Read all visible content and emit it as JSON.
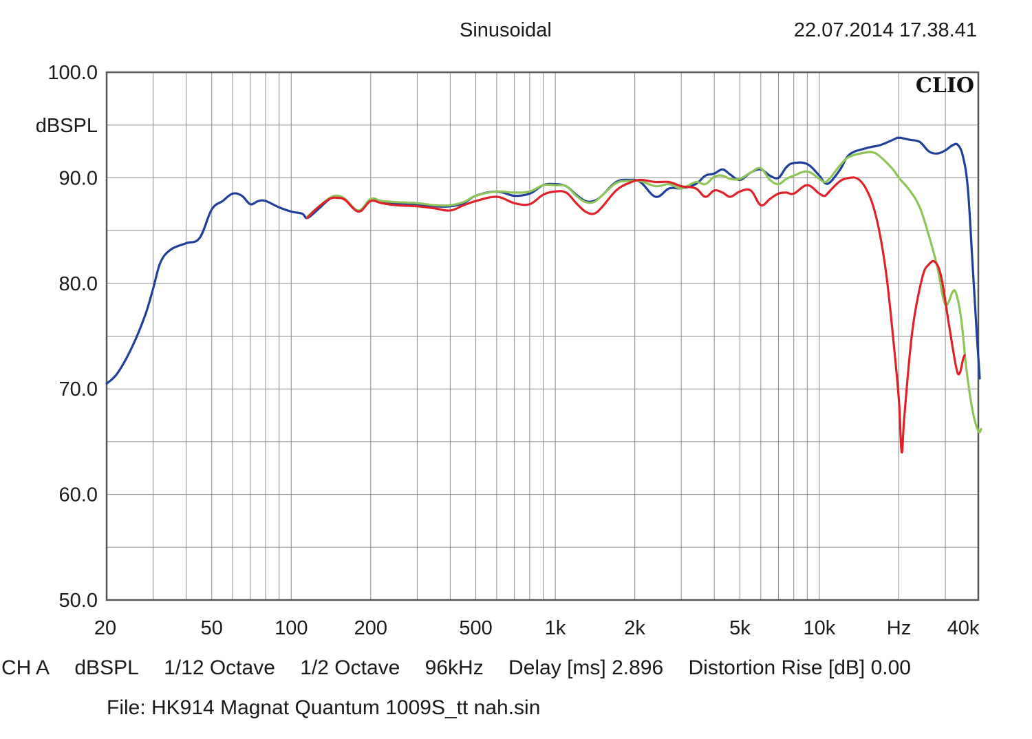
{
  "header": {
    "title": "Sinusoidal",
    "timestamp": "22.07.2014 17.38.41",
    "watermark": "CLIO"
  },
  "footer": {
    "channel": "CH A",
    "unit": "dBSPL",
    "smoothing": "1/12 Octave",
    "octave": "1/2 Octave",
    "sample_rate": "96kHz",
    "delay": "Delay [ms] 2.896",
    "distortion": "Distortion Rise [dB] 0.00",
    "file": "File: HK914 Magnat Quantum 1009S_tt nah.sin"
  },
  "colors": {
    "blue": "#1f3f9a",
    "green": "#8ec45a",
    "red": "#e0212a",
    "grid": "#8a8a8a",
    "frame": "#555555"
  },
  "chart_data": {
    "type": "line",
    "title": "Sinusoidal",
    "xlabel": "Hz",
    "ylabel": "dBSPL",
    "xscale": "log",
    "xlim": [
      20,
      40000
    ],
    "ylim": [
      50,
      100
    ],
    "grid": true,
    "y_ticks": [
      {
        "value": 100,
        "label": "100.0"
      },
      {
        "value": 90,
        "label": "90.0"
      },
      {
        "value": 80,
        "label": "80.0"
      },
      {
        "value": 70,
        "label": "70.0"
      },
      {
        "value": 60,
        "label": "60.0"
      },
      {
        "value": 50,
        "label": "50.0"
      }
    ],
    "x_ticks": [
      {
        "value": 20,
        "label": "20"
      },
      {
        "value": 50,
        "label": "50"
      },
      {
        "value": 100,
        "label": "100"
      },
      {
        "value": 200,
        "label": "200"
      },
      {
        "value": 500,
        "label": "500"
      },
      {
        "value": 1000,
        "label": "1k"
      },
      {
        "value": 2000,
        "label": "2k"
      },
      {
        "value": 5000,
        "label": "5k"
      },
      {
        "value": 10000,
        "label": "10k"
      },
      {
        "value": 20000,
        "label": "Hz"
      },
      {
        "value": 40000,
        "label": "40k"
      }
    ],
    "series": [
      {
        "color": "#1f3f9a",
        "points": [
          [
            20,
            70.5
          ],
          [
            22,
            71.5
          ],
          [
            25,
            74.0
          ],
          [
            28,
            77.0
          ],
          [
            30,
            79.5
          ],
          [
            32,
            82.0
          ],
          [
            35,
            83.2
          ],
          [
            40,
            83.8
          ],
          [
            45,
            84.3
          ],
          [
            50,
            87.0
          ],
          [
            55,
            87.8
          ],
          [
            60,
            88.5
          ],
          [
            65,
            88.3
          ],
          [
            70,
            87.5
          ],
          [
            75,
            87.8
          ],
          [
            80,
            87.8
          ],
          [
            90,
            87.2
          ],
          [
            100,
            86.8
          ],
          [
            110,
            86.6
          ],
          [
            115,
            86.2
          ],
          [
            125,
            86.9
          ],
          [
            140,
            88.0
          ],
          [
            150,
            88.2
          ],
          [
            160,
            88.0
          ],
          [
            180,
            86.8
          ],
          [
            200,
            87.9
          ],
          [
            220,
            87.7
          ],
          [
            250,
            87.6
          ],
          [
            300,
            87.5
          ],
          [
            350,
            87.3
          ],
          [
            400,
            87.3
          ],
          [
            450,
            87.6
          ],
          [
            500,
            88.3
          ],
          [
            600,
            88.7
          ],
          [
            700,
            88.3
          ],
          [
            800,
            88.5
          ],
          [
            900,
            89.3
          ],
          [
            1000,
            89.4
          ],
          [
            1100,
            89.2
          ],
          [
            1200,
            88.4
          ],
          [
            1300,
            87.8
          ],
          [
            1400,
            87.8
          ],
          [
            1500,
            88.3
          ],
          [
            1700,
            89.6
          ],
          [
            1900,
            89.8
          ],
          [
            2100,
            89.6
          ],
          [
            2400,
            88.2
          ],
          [
            2700,
            89.0
          ],
          [
            3000,
            89.0
          ],
          [
            3400,
            89.4
          ],
          [
            3700,
            90.2
          ],
          [
            4000,
            90.4
          ],
          [
            4300,
            90.8
          ],
          [
            4600,
            90.3
          ],
          [
            5000,
            89.8
          ],
          [
            5500,
            90.5
          ],
          [
            6000,
            90.8
          ],
          [
            6500,
            90.2
          ],
          [
            7000,
            90.0
          ],
          [
            7500,
            91.0
          ],
          [
            8000,
            91.4
          ],
          [
            9000,
            91.3
          ],
          [
            10000,
            90.2
          ],
          [
            10500,
            89.5
          ],
          [
            11000,
            89.6
          ],
          [
            12000,
            90.8
          ],
          [
            13000,
            92.2
          ],
          [
            15000,
            92.8
          ],
          [
            17000,
            93.1
          ],
          [
            19000,
            93.6
          ],
          [
            20000,
            93.8
          ],
          [
            22000,
            93.6
          ],
          [
            24000,
            93.4
          ],
          [
            26000,
            92.5
          ],
          [
            28000,
            92.3
          ],
          [
            30000,
            92.6
          ],
          [
            32000,
            93.1
          ],
          [
            33500,
            93.1
          ],
          [
            35000,
            92.0
          ],
          [
            36500,
            89.0
          ],
          [
            38000,
            82.0
          ],
          [
            39500,
            75.0
          ],
          [
            40500,
            71.0
          ]
        ]
      },
      {
        "color": "#8ec45a",
        "points": [
          [
            115,
            86.3
          ],
          [
            125,
            87.1
          ],
          [
            140,
            88.1
          ],
          [
            150,
            88.3
          ],
          [
            160,
            88.0
          ],
          [
            180,
            86.9
          ],
          [
            200,
            88.0
          ],
          [
            220,
            87.8
          ],
          [
            250,
            87.7
          ],
          [
            300,
            87.6
          ],
          [
            350,
            87.4
          ],
          [
            400,
            87.4
          ],
          [
            450,
            87.7
          ],
          [
            500,
            88.3
          ],
          [
            600,
            88.7
          ],
          [
            700,
            88.6
          ],
          [
            800,
            88.7
          ],
          [
            900,
            89.3
          ],
          [
            1000,
            89.3
          ],
          [
            1100,
            89.2
          ],
          [
            1200,
            88.3
          ],
          [
            1300,
            87.7
          ],
          [
            1400,
            87.7
          ],
          [
            1500,
            88.3
          ],
          [
            1700,
            89.5
          ],
          [
            1900,
            89.7
          ],
          [
            2100,
            89.7
          ],
          [
            2400,
            89.2
          ],
          [
            2700,
            89.4
          ],
          [
            3000,
            89.0
          ],
          [
            3400,
            89.6
          ],
          [
            3700,
            89.4
          ],
          [
            4000,
            90.1
          ],
          [
            4300,
            90.2
          ],
          [
            4600,
            89.9
          ],
          [
            5000,
            89.9
          ],
          [
            5500,
            90.5
          ],
          [
            6000,
            90.9
          ],
          [
            6500,
            89.8
          ],
          [
            7000,
            89.4
          ],
          [
            7500,
            89.9
          ],
          [
            8000,
            90.2
          ],
          [
            9000,
            90.6
          ],
          [
            10000,
            89.9
          ],
          [
            10500,
            89.6
          ],
          [
            11000,
            90.0
          ],
          [
            12000,
            91.2
          ],
          [
            13000,
            92.0
          ],
          [
            15000,
            92.4
          ],
          [
            16000,
            92.4
          ],
          [
            17000,
            92.0
          ],
          [
            19000,
            90.8
          ],
          [
            20000,
            90.0
          ],
          [
            22000,
            88.8
          ],
          [
            24000,
            87.2
          ],
          [
            26000,
            84.5
          ],
          [
            28000,
            81.5
          ],
          [
            29500,
            78.5
          ],
          [
            30500,
            78.0
          ],
          [
            32000,
            79.2
          ],
          [
            33000,
            79.0
          ],
          [
            34500,
            76.5
          ],
          [
            36000,
            72.0
          ],
          [
            38000,
            68.0
          ],
          [
            40000,
            66.0
          ],
          [
            41000,
            66.2
          ]
        ]
      },
      {
        "color": "#e0212a",
        "points": [
          [
            115,
            86.2
          ],
          [
            125,
            87.1
          ],
          [
            140,
            88.0
          ],
          [
            150,
            88.1
          ],
          [
            160,
            87.9
          ],
          [
            180,
            86.8
          ],
          [
            200,
            87.8
          ],
          [
            220,
            87.6
          ],
          [
            250,
            87.4
          ],
          [
            300,
            87.3
          ],
          [
            350,
            87.1
          ],
          [
            400,
            86.9
          ],
          [
            450,
            87.4
          ],
          [
            500,
            87.8
          ],
          [
            600,
            88.2
          ],
          [
            700,
            87.6
          ],
          [
            800,
            87.5
          ],
          [
            900,
            88.4
          ],
          [
            1000,
            88.7
          ],
          [
            1100,
            88.6
          ],
          [
            1200,
            87.6
          ],
          [
            1300,
            86.8
          ],
          [
            1400,
            86.6
          ],
          [
            1500,
            87.2
          ],
          [
            1700,
            88.8
          ],
          [
            1900,
            89.5
          ],
          [
            2100,
            89.8
          ],
          [
            2400,
            89.6
          ],
          [
            2700,
            89.6
          ],
          [
            3000,
            89.2
          ],
          [
            3400,
            89.0
          ],
          [
            3700,
            88.2
          ],
          [
            4000,
            88.8
          ],
          [
            4300,
            88.6
          ],
          [
            4600,
            88.2
          ],
          [
            5000,
            88.7
          ],
          [
            5500,
            88.8
          ],
          [
            6000,
            87.4
          ],
          [
            6500,
            88.0
          ],
          [
            7000,
            88.5
          ],
          [
            7500,
            88.6
          ],
          [
            8000,
            88.5
          ],
          [
            9000,
            89.3
          ],
          [
            10000,
            88.5
          ],
          [
            10500,
            88.3
          ],
          [
            11000,
            88.8
          ],
          [
            12000,
            89.7
          ],
          [
            13000,
            90.0
          ],
          [
            14000,
            89.9
          ],
          [
            15000,
            89.0
          ],
          [
            16000,
            87.3
          ],
          [
            17000,
            84.5
          ],
          [
            18000,
            80.5
          ],
          [
            19000,
            75.0
          ],
          [
            20000,
            69.0
          ],
          [
            20500,
            64.0
          ],
          [
            21000,
            67.5
          ],
          [
            22500,
            75.5
          ],
          [
            24500,
            80.5
          ],
          [
            26000,
            81.8
          ],
          [
            27500,
            82.0
          ],
          [
            29000,
            80.5
          ],
          [
            31000,
            76.0
          ],
          [
            33000,
            72.0
          ],
          [
            34000,
            71.5
          ],
          [
            35000,
            72.8
          ],
          [
            35500,
            73.2
          ]
        ]
      }
    ]
  }
}
